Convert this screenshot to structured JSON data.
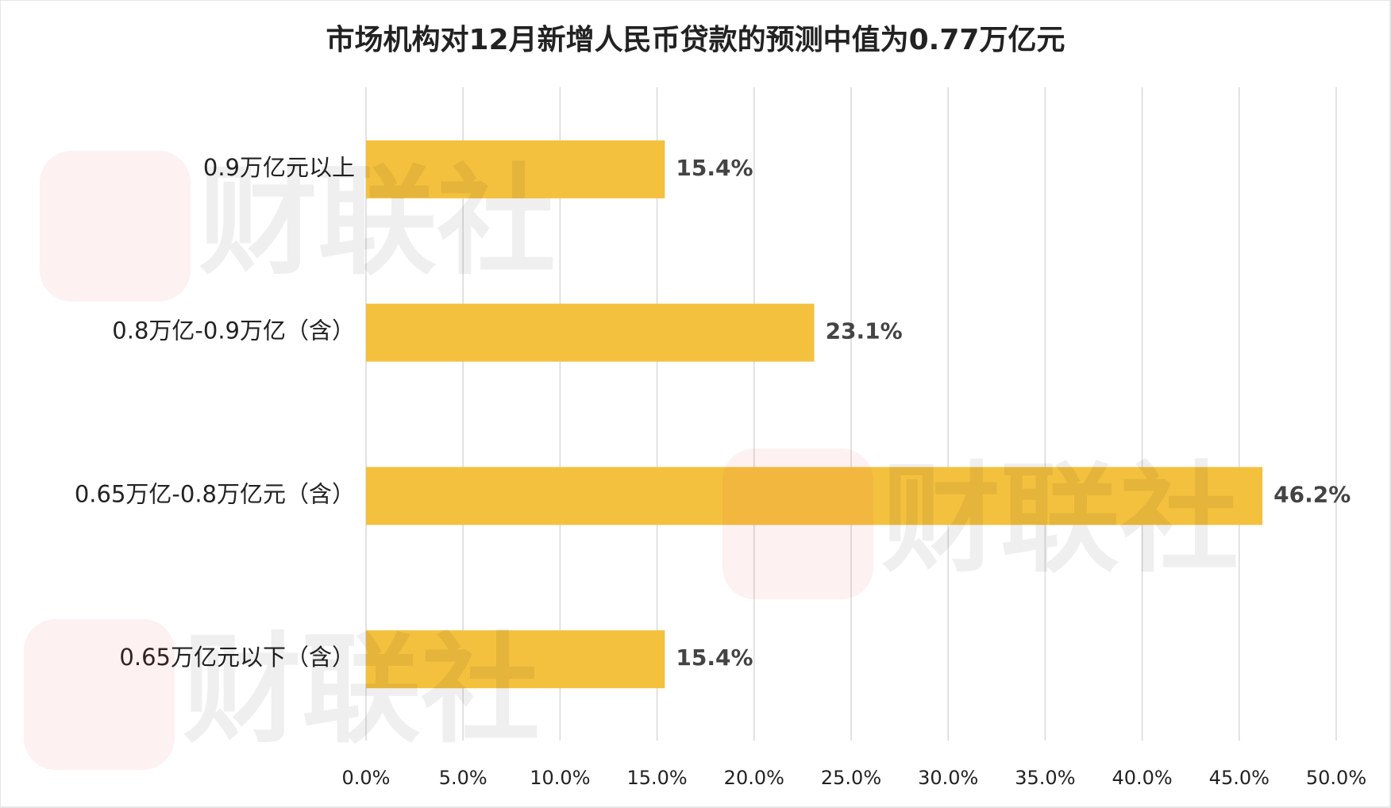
{
  "chart_data": {
    "type": "barh",
    "title": "市场机构对12月新增人民币贷款的预测中值为0.77万亿元",
    "watermark": "财联社",
    "categories": [
      "0.9万亿元以上",
      "0.8万亿-0.9万亿（含）",
      "0.65万亿-0.8万亿元（含）",
      "0.65万亿元以下（含）"
    ],
    "values": [
      15.4,
      23.1,
      46.2,
      15.4
    ],
    "value_labels": [
      "15.4%",
      "23.1%",
      "46.2%",
      "15.4%"
    ],
    "color": "#f4c13f",
    "xlim": [
      0,
      50
    ],
    "xticks": [
      {
        "value": 0,
        "label": "0.0%"
      },
      {
        "value": 5,
        "label": "5.0%"
      },
      {
        "value": 10,
        "label": "10.0%"
      },
      {
        "value": 15,
        "label": "15.0%"
      },
      {
        "value": 20,
        "label": "20.0%"
      },
      {
        "value": 25,
        "label": "25.0%"
      },
      {
        "value": 30,
        "label": "30.0%"
      },
      {
        "value": 35,
        "label": "35.0%"
      },
      {
        "value": 40,
        "label": "40.0%"
      },
      {
        "value": 45,
        "label": "45.0%"
      },
      {
        "value": 50,
        "label": "50.0%"
      }
    ],
    "grid": true
  }
}
